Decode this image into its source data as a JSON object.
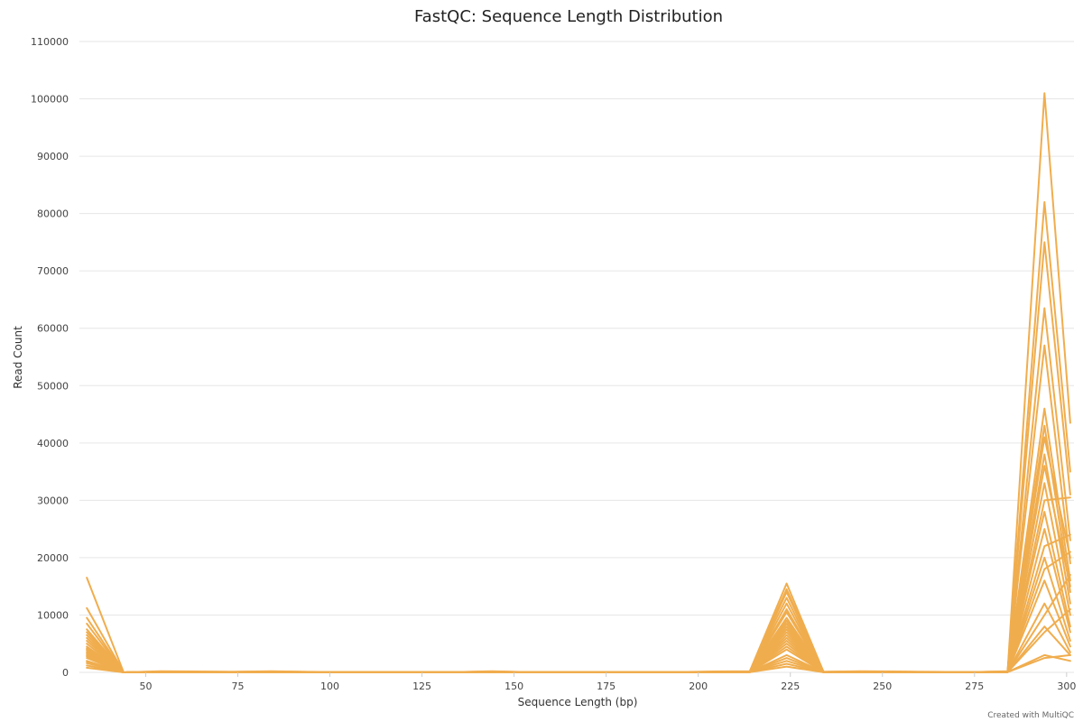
{
  "chart_data": {
    "type": "line",
    "title": "FastQC: Sequence Length Distribution",
    "xlabel": "Sequence Length (bp)",
    "ylabel": "Read Count",
    "xlim": [
      32,
      302
    ],
    "ylim": [
      0,
      110000
    ],
    "x_ticks": [
      50,
      75,
      100,
      125,
      150,
      175,
      200,
      225,
      250,
      275,
      300
    ],
    "y_ticks": [
      0,
      10000,
      20000,
      30000,
      40000,
      50000,
      60000,
      70000,
      80000,
      90000,
      100000,
      110000
    ],
    "grid": true,
    "legend": "none",
    "color": "#f0ad4e",
    "credit": "Created with MultiQC",
    "x": [
      34,
      44,
      54,
      64,
      74,
      84,
      94,
      104,
      114,
      124,
      134,
      144,
      154,
      164,
      174,
      184,
      194,
      204,
      214,
      224,
      234,
      244,
      254,
      264,
      274,
      284,
      294,
      301
    ],
    "series": [
      {
        "values": [
          16500,
          0,
          200,
          150,
          100,
          200,
          100,
          50,
          50,
          50,
          50,
          200,
          50,
          50,
          50,
          50,
          50,
          150,
          200,
          15500,
          100,
          200,
          150,
          100,
          50,
          200,
          101000,
          43500
        ]
      },
      {
        "values": [
          11200,
          0,
          150,
          100,
          100,
          150,
          80,
          50,
          50,
          50,
          50,
          150,
          50,
          50,
          50,
          50,
          50,
          100,
          150,
          14500,
          100,
          150,
          100,
          80,
          50,
          150,
          82000,
          35000
        ]
      },
      {
        "values": [
          9500,
          0,
          100,
          100,
          80,
          120,
          60,
          40,
          40,
          40,
          40,
          120,
          40,
          40,
          40,
          40,
          40,
          100,
          120,
          13000,
          80,
          120,
          100,
          60,
          40,
          150,
          75000,
          31000
        ]
      },
      {
        "values": [
          8500,
          0,
          100,
          80,
          80,
          100,
          60,
          40,
          40,
          40,
          40,
          100,
          40,
          40,
          40,
          40,
          40,
          80,
          100,
          11000,
          80,
          100,
          80,
          60,
          40,
          120,
          63500,
          23000
        ]
      },
      {
        "values": [
          7500,
          0,
          80,
          80,
          60,
          100,
          50,
          30,
          30,
          30,
          30,
          100,
          30,
          30,
          30,
          30,
          30,
          80,
          100,
          9500,
          60,
          100,
          80,
          50,
          30,
          100,
          57000,
          19000
        ]
      },
      {
        "values": [
          6500,
          0,
          80,
          60,
          60,
          80,
          50,
          30,
          30,
          30,
          30,
          80,
          30,
          30,
          30,
          30,
          30,
          60,
          80,
          8000,
          60,
          80,
          60,
          50,
          30,
          100,
          46000,
          16000
        ]
      },
      {
        "values": [
          5500,
          0,
          60,
          60,
          50,
          80,
          40,
          30,
          30,
          30,
          30,
          80,
          30,
          30,
          30,
          30,
          30,
          60,
          80,
          7000,
          50,
          80,
          60,
          40,
          30,
          80,
          43000,
          14000
        ]
      },
      {
        "values": [
          4500,
          0,
          60,
          50,
          50,
          60,
          40,
          20,
          20,
          20,
          20,
          60,
          20,
          20,
          20,
          20,
          20,
          50,
          60,
          6000,
          50,
          60,
          50,
          40,
          20,
          80,
          38000,
          12000
        ]
      },
      {
        "values": [
          3800,
          0,
          50,
          50,
          40,
          60,
          30,
          20,
          20,
          20,
          20,
          60,
          20,
          20,
          20,
          20,
          20,
          50,
          60,
          5000,
          40,
          60,
          50,
          30,
          20,
          60,
          33000,
          10000
        ]
      },
      {
        "values": [
          3000,
          0,
          50,
          40,
          40,
          50,
          30,
          20,
          20,
          20,
          20,
          50,
          20,
          20,
          20,
          20,
          20,
          40,
          50,
          4000,
          40,
          50,
          40,
          30,
          20,
          60,
          28000,
          8000
        ]
      },
      {
        "values": [
          2500,
          0,
          40,
          40,
          30,
          50,
          30,
          20,
          20,
          20,
          20,
          50,
          20,
          20,
          20,
          20,
          20,
          40,
          50,
          3000,
          30,
          50,
          40,
          30,
          20,
          50,
          25000,
          7000
        ]
      },
      {
        "values": [
          2000,
          0,
          40,
          30,
          30,
          40,
          20,
          10,
          10,
          10,
          10,
          40,
          10,
          10,
          10,
          10,
          10,
          30,
          40,
          2500,
          30,
          40,
          30,
          20,
          10,
          50,
          20000,
          5500
        ]
      },
      {
        "values": [
          1600,
          0,
          30,
          30,
          30,
          40,
          20,
          10,
          10,
          10,
          10,
          40,
          10,
          10,
          10,
          10,
          10,
          30,
          40,
          2000,
          30,
          40,
          30,
          20,
          10,
          40,
          16000,
          4500
        ]
      },
      {
        "values": [
          1200,
          0,
          30,
          20,
          20,
          30,
          20,
          10,
          10,
          10,
          10,
          30,
          10,
          10,
          10,
          10,
          10,
          20,
          30,
          1500,
          20,
          30,
          20,
          20,
          10,
          40,
          12000,
          3500
        ]
      },
      {
        "values": [
          800,
          0,
          20,
          20,
          20,
          30,
          10,
          10,
          10,
          10,
          10,
          30,
          10,
          10,
          10,
          10,
          10,
          20,
          30,
          1000,
          20,
          30,
          20,
          10,
          10,
          30,
          8000,
          3000
        ]
      },
      {
        "values": [
          5000,
          0,
          60,
          50,
          50,
          60,
          40,
          20,
          20,
          20,
          20,
          60,
          20,
          20,
          20,
          20,
          20,
          50,
          60,
          12000,
          50,
          60,
          50,
          40,
          20,
          80,
          30000,
          30500
        ]
      },
      {
        "values": [
          4000,
          0,
          50,
          40,
          40,
          50,
          30,
          20,
          20,
          20,
          20,
          50,
          20,
          20,
          20,
          20,
          20,
          40,
          50,
          9000,
          40,
          50,
          40,
          30,
          20,
          60,
          3000,
          2000
        ]
      },
      {
        "values": [
          3500,
          0,
          40,
          40,
          30,
          50,
          30,
          20,
          20,
          20,
          20,
          50,
          20,
          20,
          20,
          20,
          20,
          40,
          50,
          7500,
          30,
          50,
          40,
          30,
          20,
          50,
          2500,
          3000
        ]
      },
      {
        "values": [
          6000,
          0,
          70,
          60,
          60,
          70,
          40,
          30,
          30,
          30,
          30,
          70,
          30,
          30,
          30,
          30,
          30,
          60,
          70,
          14000,
          60,
          70,
          60,
          40,
          30,
          90,
          22000,
          24000
        ]
      },
      {
        "values": [
          7000,
          0,
          80,
          70,
          60,
          80,
          50,
          30,
          30,
          30,
          30,
          80,
          30,
          30,
          30,
          30,
          30,
          60,
          80,
          10500,
          60,
          80,
          70,
          50,
          30,
          100,
          18000,
          21000
        ]
      },
      {
        "values": [
          2800,
          0,
          40,
          30,
          30,
          40,
          20,
          10,
          10,
          10,
          10,
          40,
          10,
          10,
          10,
          10,
          10,
          30,
          40,
          5500,
          30,
          40,
          30,
          20,
          10,
          50,
          10000,
          17000
        ]
      },
      {
        "values": [
          1900,
          0,
          30,
          30,
          20,
          30,
          20,
          10,
          10,
          10,
          10,
          30,
          10,
          10,
          10,
          10,
          10,
          20,
          30,
          4500,
          20,
          30,
          30,
          20,
          10,
          40,
          7000,
          11000
        ]
      },
      {
        "values": [
          4200,
          0,
          50,
          50,
          40,
          60,
          30,
          20,
          20,
          20,
          20,
          60,
          20,
          20,
          20,
          20,
          20,
          40,
          60,
          8500,
          40,
          60,
          50,
          30,
          20,
          70,
          41000,
          20000
        ]
      },
      {
        "values": [
          3300,
          0,
          40,
          40,
          30,
          50,
          30,
          20,
          20,
          20,
          20,
          50,
          20,
          20,
          20,
          20,
          20,
          40,
          50,
          6500,
          30,
          50,
          40,
          30,
          20,
          60,
          36000,
          15000
        ]
      }
    ]
  }
}
